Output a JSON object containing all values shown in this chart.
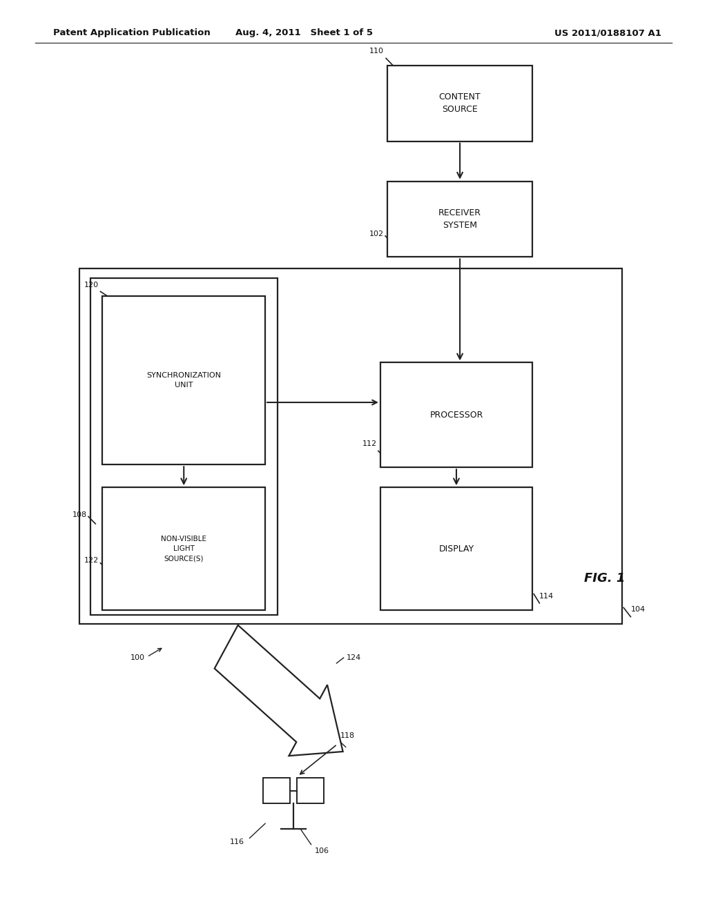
{
  "bg_color": "#ffffff",
  "header_left": "Patent Application Publication",
  "header_mid": "Aug. 4, 2011   Sheet 1 of 5",
  "header_right": "US 2011/0188107 A1",
  "fig_label": "FIG. 1",
  "line_color": "#222222",
  "text_color": "#111111"
}
